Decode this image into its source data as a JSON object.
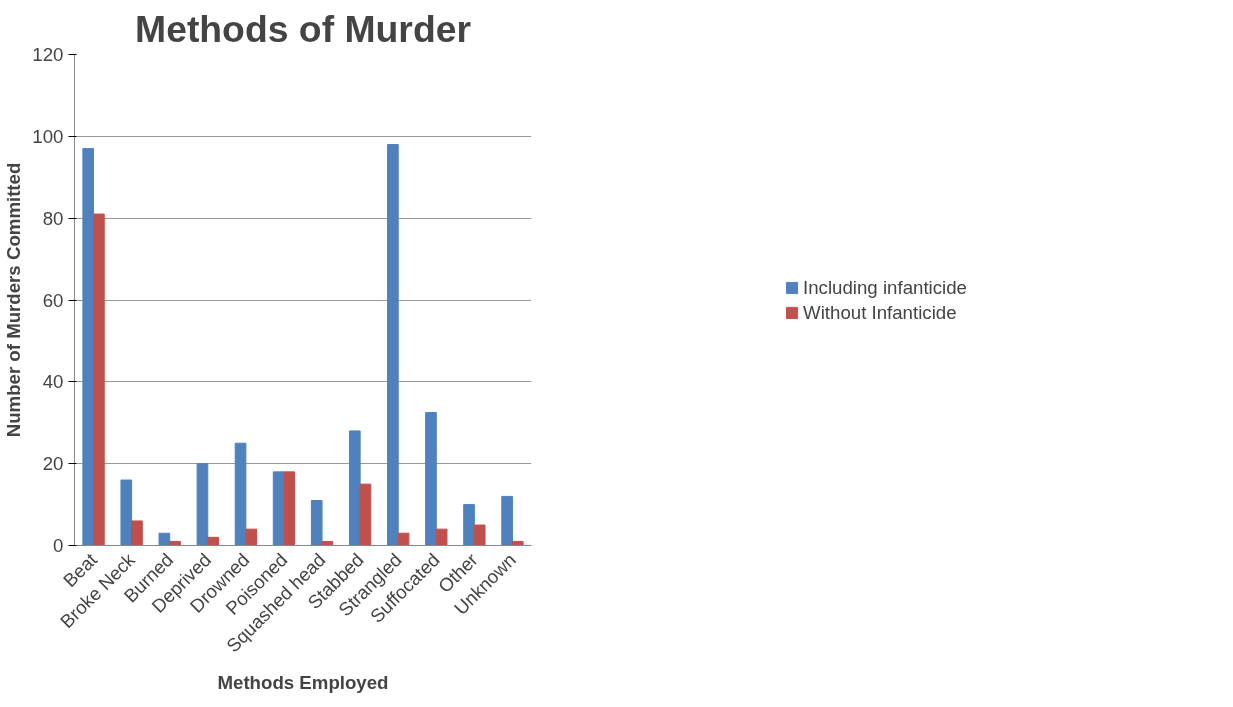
{
  "chart_data": {
    "type": "bar",
    "title": "Methods of Murder",
    "xlabel": "Methods Employed",
    "ylabel": "Number of Murders Committed",
    "categories": [
      "Beat",
      "Broke Neck",
      "Burned",
      "Deprived",
      "Drowned",
      "Poisoned",
      "Squashed head",
      "Stabbed",
      "Strangled",
      "Suffocated",
      "Other",
      "Unknown"
    ],
    "series": [
      {
        "name": "Including infanticide",
        "color": "#4f81bd",
        "values": [
          97,
          16,
          3,
          20,
          25,
          18,
          11,
          28,
          98,
          32.5,
          10,
          12
        ]
      },
      {
        "name": "Without Infanticide",
        "color": "#c0504d",
        "values": [
          81,
          6,
          1,
          2,
          4,
          18,
          1,
          15,
          3,
          4,
          5,
          1
        ]
      }
    ],
    "ylim": [
      0,
      120
    ],
    "yticks": [
      0,
      20,
      40,
      60,
      80,
      100,
      120
    ],
    "grid": "y",
    "legend": "right"
  }
}
